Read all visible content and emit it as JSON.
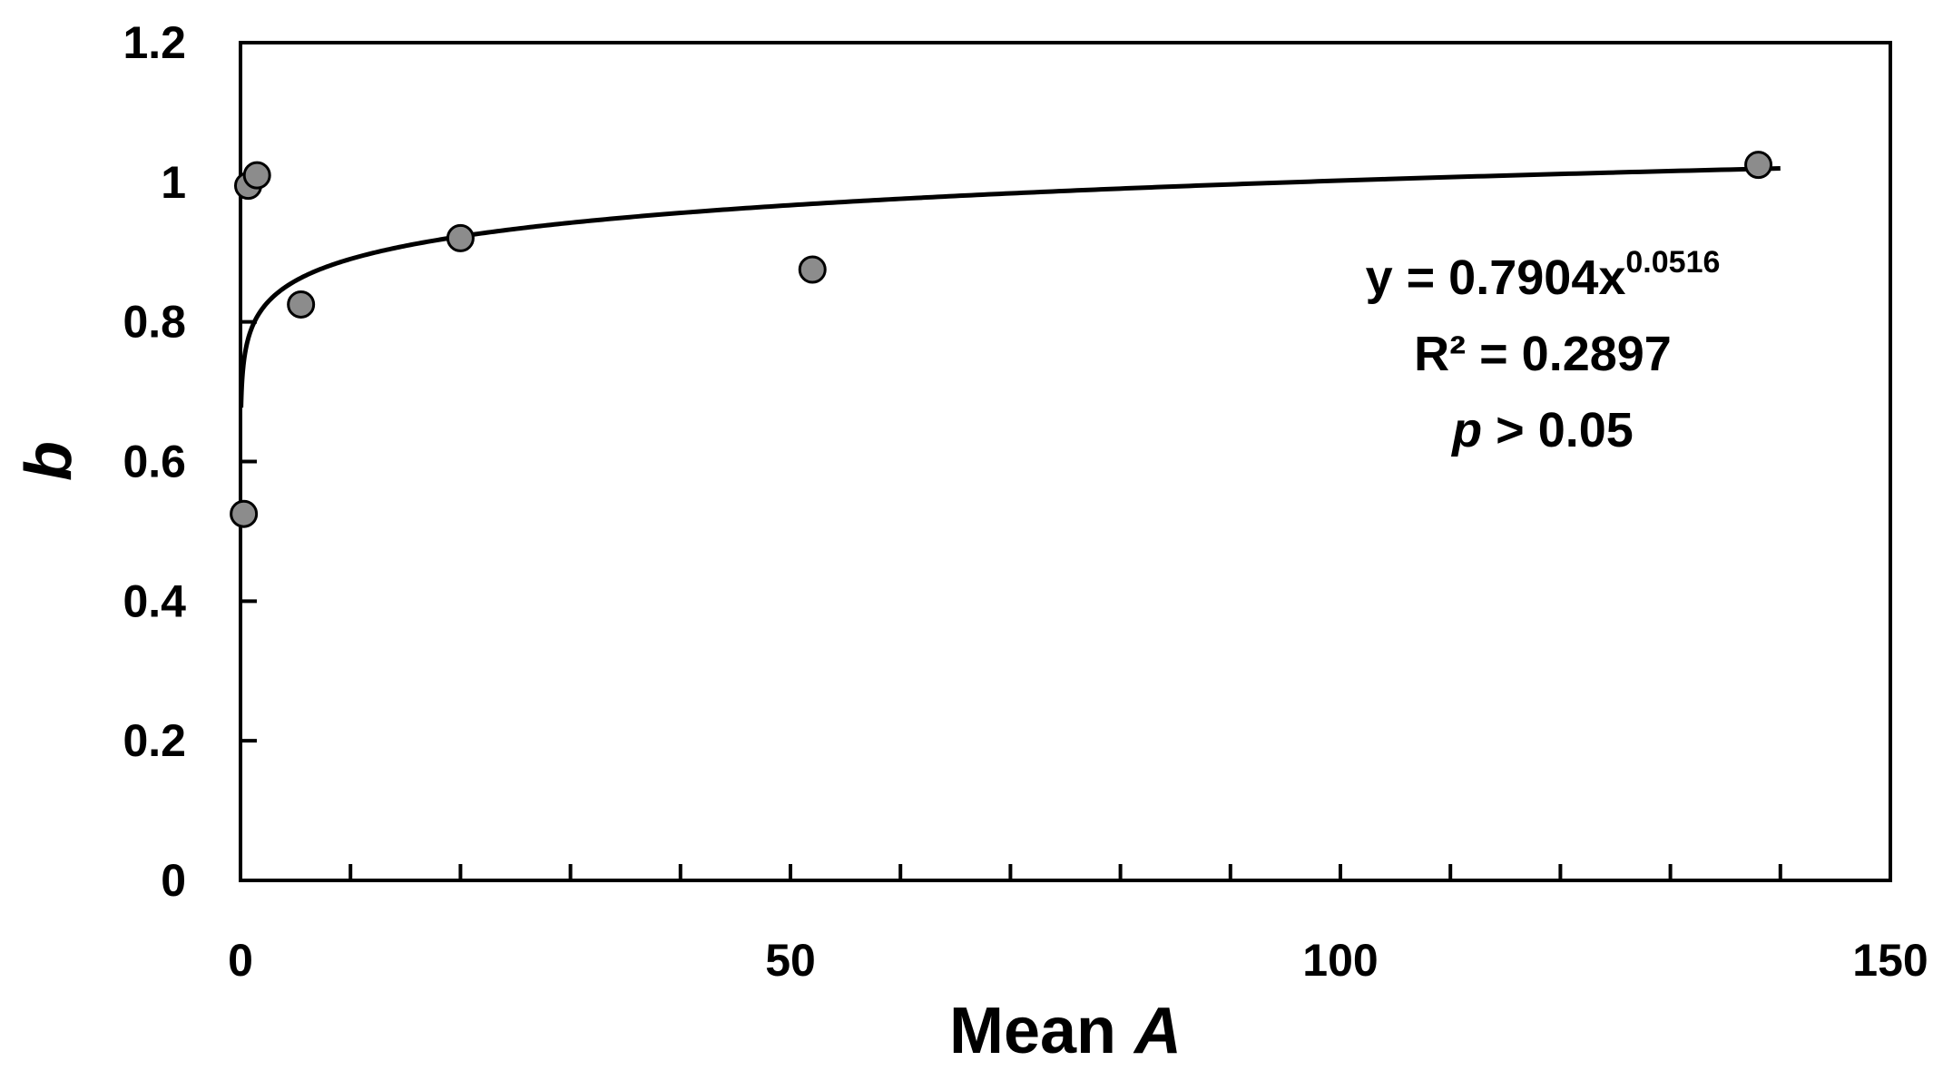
{
  "chart_data": {
    "type": "scatter",
    "x_axis": {
      "label_text": "Mean ",
      "label_var": "A",
      "min": 0,
      "max": 150,
      "major_ticks": [
        0,
        50,
        100,
        150
      ],
      "minor_step": 10
    },
    "y_axis": {
      "label": "b",
      "min": 0,
      "max": 1.2,
      "ticks": [
        0,
        0.2,
        0.4,
        0.6,
        0.8,
        1,
        1.2
      ],
      "tick_labels": [
        "0",
        "0.2",
        "0.4",
        "0.6",
        "0.8",
        "1",
        "1.2"
      ]
    },
    "points": [
      {
        "x": 0.3,
        "y": 0.525
      },
      {
        "x": 0.7,
        "y": 0.995
      },
      {
        "x": 1.5,
        "y": 1.01
      },
      {
        "x": 5.5,
        "y": 0.825
      },
      {
        "x": 20,
        "y": 0.92
      },
      {
        "x": 52,
        "y": 0.875
      },
      {
        "x": 138,
        "y": 1.025
      }
    ],
    "trendline": {
      "type": "power",
      "coefficient": 0.7904,
      "exponent": 0.0516,
      "x_start": 0.05,
      "x_end": 140
    },
    "annotations": {
      "equation_base": "y = 0.7904x",
      "equation_exponent": "0.0516",
      "r2_label": "R²",
      "r2_value": " = 0.2897",
      "p_label": "p",
      "p_value": " > 0.05"
    },
    "grid": false,
    "legend": "none"
  },
  "colors": {
    "marker_fill": "#8c8c8c",
    "marker_stroke": "#000000",
    "line": "#000000",
    "axis": "#000000",
    "background": "#ffffff"
  }
}
